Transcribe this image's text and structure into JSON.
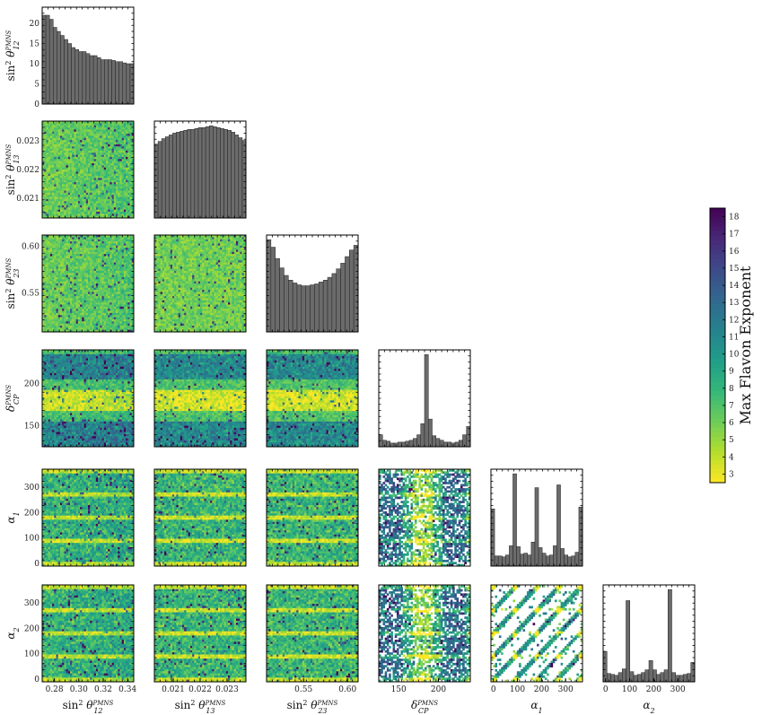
{
  "chart_data": {
    "type": "corner_plot",
    "parameters": [
      {
        "key": "s12",
        "label_main": "sin",
        "label_sup": "2",
        "label_sym": "θ",
        "label_sub": "12",
        "label_superscript": "PMNS",
        "range": [
          0.27,
          0.345
        ],
        "ticks": [
          0.28,
          0.3,
          0.32,
          0.34
        ],
        "tick_labels": [
          "0.28",
          "0.30",
          "0.32",
          "0.34"
        ]
      },
      {
        "key": "s13",
        "label_main": "sin",
        "label_sup": "2",
        "label_sym": "θ",
        "label_sub": "13",
        "label_superscript": "PMNS",
        "range": [
          0.0203,
          0.0237
        ],
        "ticks": [
          0.021,
          0.022,
          0.023
        ],
        "tick_labels": [
          "0.021",
          "0.022",
          "0.023"
        ]
      },
      {
        "key": "s23",
        "label_main": "sin",
        "label_sup": "2",
        "label_sym": "θ",
        "label_sub": "23",
        "label_superscript": "PMNS",
        "range": [
          0.508,
          0.612
        ],
        "ticks": [
          0.55,
          0.6
        ],
        "tick_labels": [
          "0.55",
          "0.60"
        ]
      },
      {
        "key": "dcp",
        "label_main": "",
        "label_sup": "",
        "label_sym": "δ",
        "label_sub": "CP",
        "label_superscript": "PMNS",
        "range": [
          125,
          240
        ],
        "ticks": [
          150,
          200
        ],
        "tick_labels": [
          "150",
          "200"
        ]
      },
      {
        "key": "a1",
        "label_main": "",
        "label_sup": "",
        "label_sym": "α",
        "label_sub": "1",
        "label_superscript": "",
        "range": [
          -10,
          370
        ],
        "ticks": [
          0,
          100,
          200,
          300
        ],
        "tick_labels": [
          "0",
          "100",
          "200",
          "300"
        ]
      },
      {
        "key": "a2",
        "label_main": "",
        "label_sup": "",
        "label_sym": "α",
        "label_sub": "2",
        "label_superscript": "",
        "range": [
          -10,
          370
        ],
        "ticks": [
          0,
          100,
          200,
          300
        ],
        "tick_labels": [
          "0",
          "100",
          "200",
          "300"
        ]
      }
    ],
    "top_hist_y_ticks": [
      0,
      5,
      10,
      15,
      20
    ],
    "top_hist_y_tick_labels": [
      "0",
      "5",
      "10",
      "15",
      "20"
    ],
    "top_hist_y_range": [
      0,
      24
    ],
    "histograms": {
      "s12": [
        22,
        22,
        21,
        19,
        18,
        17,
        16,
        15,
        14,
        13.5,
        13,
        13,
        12.5,
        12,
        12,
        11.5,
        11,
        11,
        11,
        10.8,
        10.5,
        10.5,
        10.2,
        10,
        10
      ],
      "s13": [
        0.8,
        0.83,
        0.86,
        0.88,
        0.9,
        0.92,
        0.93,
        0.94,
        0.95,
        0.96,
        0.96,
        0.97,
        0.98,
        0.98,
        0.99,
        1.0,
        0.99,
        0.98,
        0.97,
        0.96,
        0.95,
        0.93,
        0.9,
        0.87,
        0.84
      ],
      "s23": [
        0.98,
        0.9,
        0.78,
        0.68,
        0.6,
        0.55,
        0.52,
        0.5,
        0.49,
        0.49,
        0.5,
        0.51,
        0.53,
        0.55,
        0.58,
        0.62,
        0.67,
        0.73,
        0.8,
        0.87,
        0.92
      ],
      "dcp": [
        0.13,
        0.07,
        0.06,
        0.04,
        0.04,
        0.05,
        0.05,
        0.06,
        0.07,
        0.09,
        0.13,
        0.25,
        1.0,
        0.3,
        0.12,
        0.09,
        0.07,
        0.05,
        0.05,
        0.04,
        0.05,
        0.07,
        0.13,
        0.22
      ],
      "a1": [
        0.62,
        0.11,
        0.11,
        0.1,
        0.12,
        0.22,
        1.0,
        0.21,
        0.13,
        0.14,
        0.12,
        0.26,
        0.85,
        0.2,
        0.14,
        0.11,
        0.12,
        0.22,
        0.88,
        0.19,
        0.12,
        0.1,
        0.11,
        0.15,
        0.64
      ],
      "a2": [
        0.33,
        0.09,
        0.08,
        0.07,
        0.1,
        0.14,
        0.88,
        0.11,
        0.07,
        0.08,
        0.1,
        0.13,
        0.23,
        0.13,
        0.08,
        0.1,
        0.13,
        1.0,
        0.1,
        0.07,
        0.07,
        0.08,
        0.09,
        0.21
      ]
    },
    "colorbar": {
      "label": "Max Flavon Exponent",
      "colormap": "viridis_r",
      "range": [
        2.5,
        18.5
      ],
      "ticks": [
        3,
        4,
        5,
        6,
        7,
        8,
        9,
        10,
        11,
        12,
        13,
        14,
        15,
        16,
        17,
        18
      ],
      "tick_labels": [
        "3",
        "4",
        "5",
        "6",
        "7",
        "8",
        "9",
        "10",
        "11",
        "12",
        "13",
        "14",
        "15",
        "16",
        "17",
        "18"
      ]
    },
    "structure": {
      "dcp_bands_center": [
        140,
        215
      ],
      "alpha_band_centers": [
        0,
        90,
        180,
        270,
        360
      ]
    },
    "hist_bar_color": "#6b6b6b",
    "hist_edge_color": "#222222"
  }
}
